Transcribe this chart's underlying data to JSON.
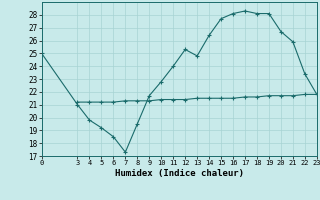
{
  "title": "",
  "xlabel": "Humidex (Indice chaleur)",
  "ylabel": "",
  "bg_color": "#c8eaea",
  "line_color": "#1a6b6b",
  "grid_color": "#a8d4d4",
  "ylim": [
    17,
    29
  ],
  "xlim": [
    0,
    23
  ],
  "yticks": [
    17,
    18,
    19,
    20,
    21,
    22,
    23,
    24,
    25,
    26,
    27,
    28
  ],
  "xticks": [
    0,
    3,
    4,
    5,
    6,
    7,
    8,
    9,
    10,
    11,
    12,
    13,
    14,
    15,
    16,
    17,
    18,
    19,
    20,
    21,
    22,
    23
  ],
  "line1_x": [
    0,
    3,
    4,
    5,
    6,
    7,
    8,
    9,
    10,
    11,
    12,
    13,
    14,
    15,
    16,
    17,
    18,
    19,
    20,
    21,
    22,
    23
  ],
  "line1_y": [
    25.0,
    21.0,
    19.8,
    19.2,
    18.5,
    17.3,
    19.5,
    21.7,
    22.8,
    24.0,
    25.3,
    24.8,
    26.4,
    27.7,
    28.1,
    28.3,
    28.1,
    28.1,
    26.7,
    25.9,
    23.4,
    21.8
  ],
  "line2_x": [
    3,
    4,
    5,
    6,
    7,
    8,
    9,
    10,
    11,
    12,
    13,
    14,
    15,
    16,
    17,
    18,
    19,
    20,
    21,
    22,
    23
  ],
  "line2_y": [
    21.2,
    21.2,
    21.2,
    21.2,
    21.3,
    21.3,
    21.3,
    21.4,
    21.4,
    21.4,
    21.5,
    21.5,
    21.5,
    21.5,
    21.6,
    21.6,
    21.7,
    21.7,
    21.7,
    21.8,
    21.8
  ],
  "tick_fontsize": 5.5,
  "xlabel_fontsize": 6.5
}
